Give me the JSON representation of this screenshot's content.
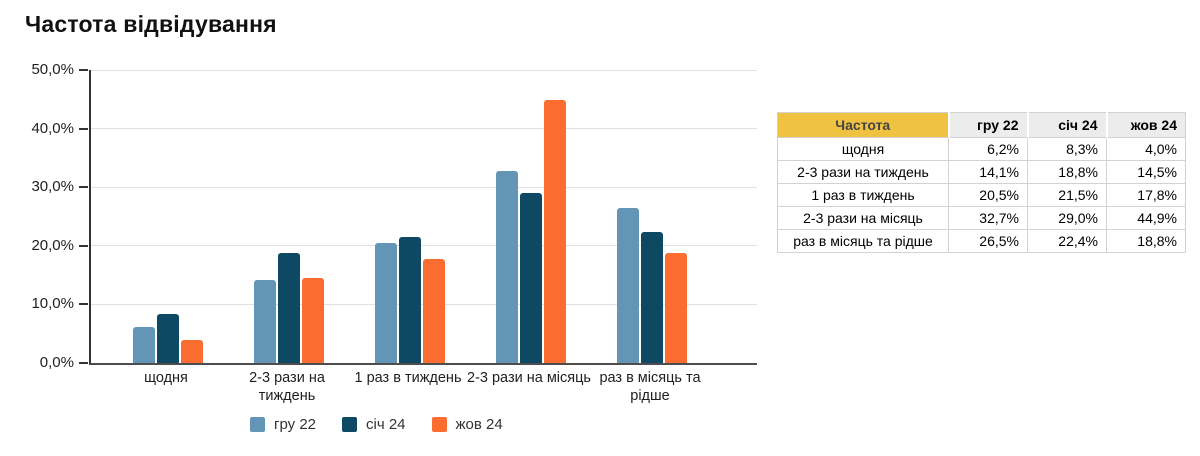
{
  "title": "Частота відвідування",
  "chart_data": {
    "type": "bar",
    "categories": [
      "щодня",
      "2-3 рази на тиждень",
      "1 раз в тиждень",
      "2-3 рази на місяць",
      "раз в місяць та рідше"
    ],
    "series": [
      {
        "name": "гру 22",
        "color": "#6396B6",
        "values": [
          6.2,
          14.1,
          20.5,
          32.7,
          26.5
        ]
      },
      {
        "name": "січ 24",
        "color": "#0E4964",
        "values": [
          8.3,
          18.8,
          21.5,
          29.0,
          22.4
        ]
      },
      {
        "name": "жов 24",
        "color": "#FA6C2F",
        "values": [
          4.0,
          14.5,
          17.8,
          44.9,
          18.8
        ]
      }
    ],
    "title": "Частота відвідування",
    "xlabel": "",
    "ylabel": "",
    "ylim": [
      0,
      50
    ],
    "ytick_step": 10,
    "ytick_labels": [
      "0,0%",
      "10,0%",
      "20,0%",
      "30,0%",
      "40,0%",
      "50,0%"
    ],
    "grid": true,
    "legend_position": "bottom"
  },
  "table": {
    "header": [
      "Частота",
      "гру 22",
      "січ 24",
      "жов 24"
    ],
    "rows": [
      [
        "щодня",
        "6,2%",
        "8,3%",
        "4,0%"
      ],
      [
        "2-3 рази на тиждень",
        "14,1%",
        "18,8%",
        "14,5%"
      ],
      [
        "1 раз в тиждень",
        "20,5%",
        "21,5%",
        "17,8%"
      ],
      [
        "2-3 рази на місяць",
        "32,7%",
        "29,0%",
        "44,9%"
      ],
      [
        "раз в місяць та рідше",
        "26,5%",
        "22,4%",
        "18,8%"
      ]
    ],
    "header_bg": "#F0C242",
    "header_num_bg": "#ECECEC"
  }
}
